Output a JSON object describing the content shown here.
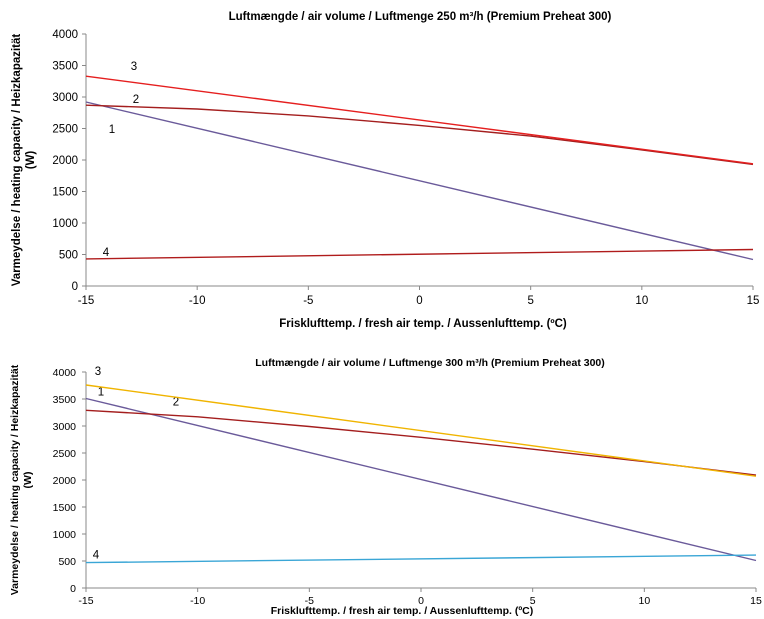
{
  "chart_data": [
    {
      "type": "line",
      "title": "Luftmængde / air volume / Luftmenge 250 m³/h (Premium Preheat 300)",
      "xlabel": "Frisklufttemp. / fresh air temp. / Aussenlufttemp. (ºC)",
      "ylabel_lines": [
        "Varmeydelse / heating capacity / Heizkapazität",
        "(W)"
      ],
      "xlim": [
        -15,
        15
      ],
      "ylim": [
        0,
        4000
      ],
      "xticks": [
        "-15",
        "-10",
        "-5",
        "0",
        "5",
        "10",
        "15"
      ],
      "yticks": [
        "0",
        "500",
        "1000",
        "1500",
        "2000",
        "2500",
        "3000",
        "3500",
        "4000"
      ],
      "grid": false,
      "legend": "none",
      "series": [
        {
          "label": "1",
          "color": "#6a5a9a",
          "x": [
            -15,
            15
          ],
          "y": [
            2920,
            420
          ]
        },
        {
          "label": "2",
          "color": "#a41e1e",
          "x": [
            -15,
            -10,
            -5,
            0,
            5,
            10,
            15
          ],
          "y": [
            2870,
            2810,
            2700,
            2550,
            2380,
            2160,
            1930
          ]
        },
        {
          "label": "3",
          "color": "#e51f1f",
          "x": [
            -15,
            15
          ],
          "y": [
            3330,
            1940
          ]
        },
        {
          "label": "4",
          "color": "#b01c1c",
          "x": [
            -15,
            15
          ],
          "y": [
            430,
            580
          ]
        }
      ]
    },
    {
      "type": "line",
      "title": "Luftmængde / air volume / Luftmenge 300 m³/h (Premium Preheat 300)",
      "xlabel": "Frisklufttemp. / fresh air temp. / Aussenlufttemp. (ºC)",
      "ylabel_lines": [
        "Varmeydelse / heating capacity / Heizkapazität",
        "(W)"
      ],
      "xlim": [
        -15,
        15
      ],
      "ylim": [
        0,
        4000
      ],
      "xticks": [
        "-15",
        "-10",
        "-5",
        "0",
        "5",
        "10",
        "15"
      ],
      "yticks": [
        "0",
        "500",
        "1000",
        "1500",
        "2000",
        "2500",
        "3000",
        "3500",
        "4000"
      ],
      "grid": false,
      "legend": "none",
      "series": [
        {
          "label": "1",
          "color": "#6a5a9a",
          "x": [
            -15,
            15
          ],
          "y": [
            3510,
            510
          ]
        },
        {
          "label": "2",
          "color": "#a41e1e",
          "x": [
            -15,
            -10,
            -5,
            0,
            5,
            10,
            15
          ],
          "y": [
            3290,
            3170,
            2990,
            2790,
            2570,
            2340,
            2090
          ]
        },
        {
          "label": "3",
          "color": "#f0b400",
          "x": [
            -15,
            15
          ],
          "y": [
            3760,
            2070
          ]
        },
        {
          "label": "4",
          "color": "#3aa6d6",
          "x": [
            -15,
            15
          ],
          "y": [
            470,
            610
          ]
        }
      ]
    }
  ]
}
